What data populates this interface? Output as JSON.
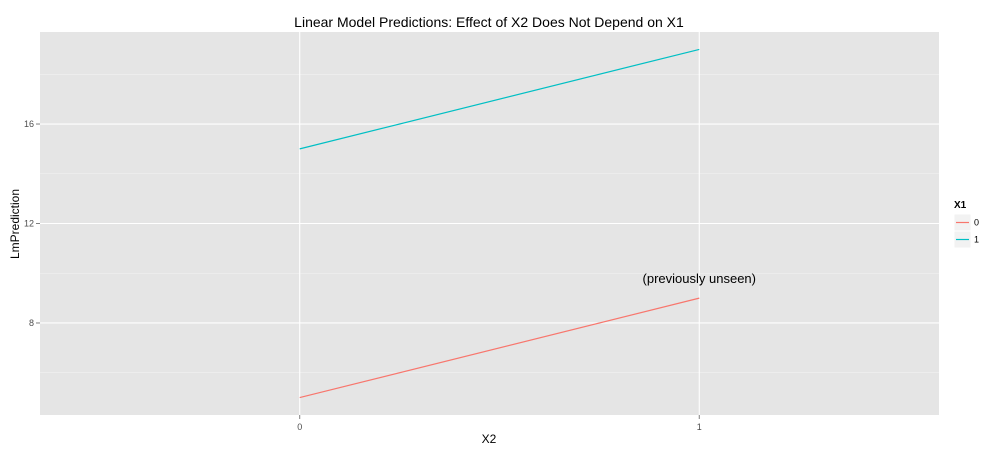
{
  "chart_data": {
    "type": "line",
    "title": "Linear Model Predictions: Effect of X2 Does Not Depend on X1",
    "xlabel": "X2",
    "ylabel": "LmPrediction",
    "x": [
      0,
      1
    ],
    "x_tick_labels": [
      "0",
      "1"
    ],
    "y_ticks": [
      8,
      12,
      16
    ],
    "y_tick_labels": [
      "8",
      "12",
      "16"
    ],
    "xlim": [
      -0.65,
      1.6
    ],
    "ylim": [
      4.3,
      19.7
    ],
    "grid": true,
    "legend": {
      "title": "X1",
      "position": "right"
    },
    "series": [
      {
        "name": "0",
        "color": "#F8766D",
        "values": [
          5,
          9
        ]
      },
      {
        "name": "1",
        "color": "#00BFC4",
        "values": [
          15,
          19
        ]
      }
    ],
    "annotations": [
      {
        "text": "(previously unseen)",
        "x": 1,
        "y": 9.6
      }
    ]
  }
}
